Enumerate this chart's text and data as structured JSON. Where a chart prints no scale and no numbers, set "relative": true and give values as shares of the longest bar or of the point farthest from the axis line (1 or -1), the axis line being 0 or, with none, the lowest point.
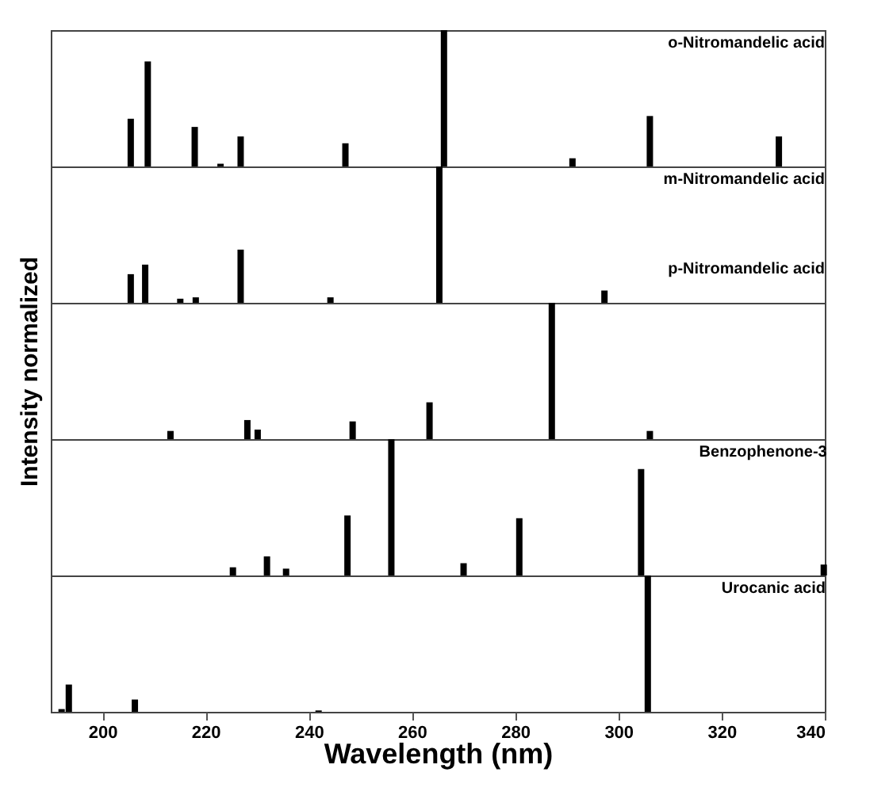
{
  "chart_data": [
    {
      "type": "bar",
      "title": "o-Nitromandelic acid",
      "relative": true,
      "xlim": [
        190,
        340
      ],
      "tick_labels": false,
      "color": "#000000",
      "x": [
        205.5,
        208.8,
        217.9,
        222.9,
        226.8,
        247.1,
        266.2,
        291.1,
        306.1,
        331.1
      ],
      "values": [
        0.35,
        0.77,
        0.29,
        0.02,
        0.22,
        0.17,
        1,
        0.06,
        0.37,
        0.22
      ]
    },
    {
      "type": "bar",
      "title": "m-Nitromandelic acid",
      "relative": true,
      "xlim": [
        190,
        340
      ],
      "tick_labels": false,
      "color": "#000000",
      "x": [
        205.5,
        208.3,
        215.1,
        218.1,
        226.8,
        244.2,
        265.3,
        297.3
      ],
      "values": [
        0.21,
        0.28,
        0.03,
        0.04,
        0.39,
        0.04,
        1,
        0.09
      ]
    },
    {
      "type": "bar",
      "title": "p-Nitromandelic acid",
      "ylabel": "Intensity normalized",
      "relative": true,
      "xlim": [
        190,
        340
      ],
      "tick_labels": false,
      "color": "#000000",
      "x": [
        213.2,
        228.1,
        230.1,
        248.5,
        263.4,
        287.1,
        306.1
      ],
      "values": [
        0.06,
        0.14,
        0.07,
        0.13,
        0.27,
        1,
        0.06
      ]
    },
    {
      "type": "bar",
      "title": "Benzophenone-3",
      "relative": true,
      "xlim": [
        190,
        340
      ],
      "tick_labels": false,
      "color": "#000000",
      "x": [
        225.3,
        231.9,
        235.6,
        247.5,
        256.0,
        270.0,
        280.8,
        304.4,
        339.8
      ],
      "values": [
        0.06,
        0.14,
        0.05,
        0.44,
        1,
        0.09,
        0.42,
        0.78,
        0.08
      ]
    },
    {
      "type": "bar",
      "title": "Urocanic acid",
      "xlabel": "Wavelength (nm)",
      "relative": true,
      "xlim": [
        190,
        340
      ],
      "xticks": [
        200,
        220,
        240,
        260,
        280,
        300,
        320,
        340
      ],
      "tick_labels": "x",
      "color": "#000000",
      "x": [
        192.1,
        193.5,
        206.3,
        241.9,
        305.7
      ],
      "values": [
        0.02,
        0.2,
        0.09,
        0.01,
        1
      ]
    }
  ]
}
